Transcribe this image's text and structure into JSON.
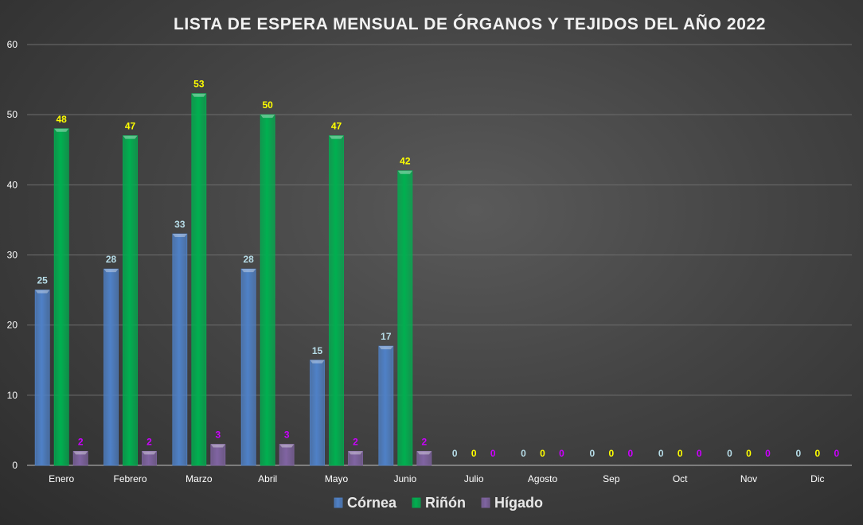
{
  "chart_data": {
    "type": "bar",
    "title": "LISTA DE ESPERA MENSUAL DE ÓRGANOS Y TEJIDOS  DEL AÑO 2022",
    "xlabel": "",
    "ylabel": "",
    "ylim": [
      0,
      60
    ],
    "yticks": [
      0,
      10,
      20,
      30,
      40,
      50,
      60
    ],
    "grid": true,
    "legend_position": "bottom",
    "categories": [
      "Enero",
      "Febrero",
      "Marzo",
      "Abril",
      "Mayo",
      "Junio",
      "Julio",
      "Agosto",
      "Sep",
      "Oct",
      "Nov",
      "Dic"
    ],
    "series": [
      {
        "name": "Córnea",
        "color": "#4f81c7",
        "label_color": "#b7dde8",
        "values": [
          25,
          28,
          33,
          28,
          15,
          17,
          0,
          0,
          0,
          0,
          0,
          0
        ]
      },
      {
        "name": "Riñón",
        "color": "#00b050",
        "label_color": "#ffff00",
        "values": [
          48,
          47,
          53,
          50,
          47,
          42,
          0,
          0,
          0,
          0,
          0,
          0
        ]
      },
      {
        "name": "Hígado",
        "color": "#8064a2",
        "label_color": "#cc00ff",
        "values": [
          2,
          2,
          3,
          3,
          2,
          2,
          0,
          0,
          0,
          0,
          0,
          0
        ]
      }
    ]
  }
}
